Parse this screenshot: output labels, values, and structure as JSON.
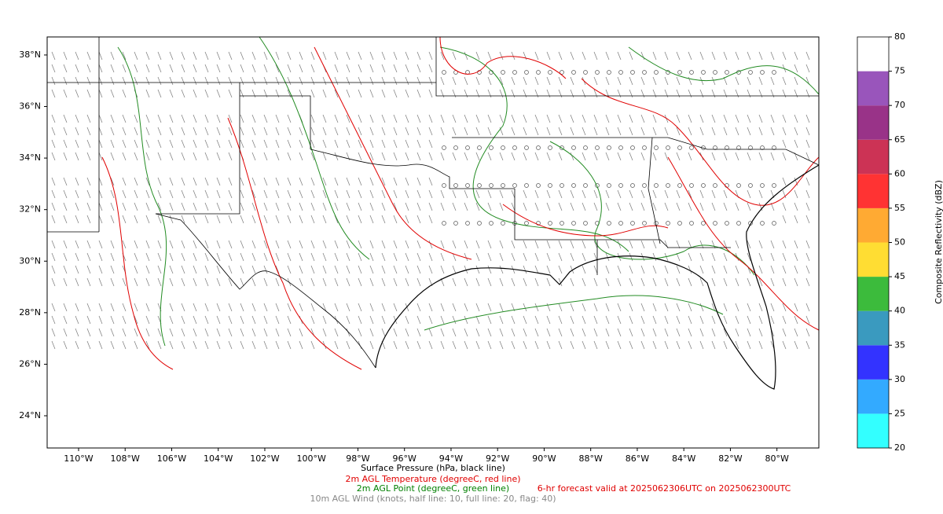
{
  "map": {
    "xlim": [
      -111.35,
      -78.2
    ],
    "ylim": [
      22.75,
      38.7
    ],
    "xticks": [
      {
        "value": -110,
        "label": "110°W"
      },
      {
        "value": -108,
        "label": "108°W"
      },
      {
        "value": -106,
        "label": "106°W"
      },
      {
        "value": -104,
        "label": "104°W"
      },
      {
        "value": -102,
        "label": "102°W"
      },
      {
        "value": -100,
        "label": "100°W"
      },
      {
        "value": -98,
        "label": "98°W"
      },
      {
        "value": -96,
        "label": "96°W"
      },
      {
        "value": -94,
        "label": "94°W"
      },
      {
        "value": -92,
        "label": "92°W"
      },
      {
        "value": -90,
        "label": "90°W"
      },
      {
        "value": -88,
        "label": "88°W"
      },
      {
        "value": -86,
        "label": "86°W"
      },
      {
        "value": -84,
        "label": "84°W"
      },
      {
        "value": -82,
        "label": "82°W"
      },
      {
        "value": -80,
        "label": "80°W"
      }
    ],
    "yticks": [
      {
        "value": 24,
        "label": "24°N"
      },
      {
        "value": 26,
        "label": "26°N"
      },
      {
        "value": 28,
        "label": "28°N"
      },
      {
        "value": 30,
        "label": "30°N"
      },
      {
        "value": 32,
        "label": "32°N"
      },
      {
        "value": 34,
        "label": "34°N"
      },
      {
        "value": 36,
        "label": "36°N"
      },
      {
        "value": 38,
        "label": "38°N"
      }
    ]
  },
  "colorbar": {
    "label": "Composite Reflectivity (dBZ)",
    "ticks": [
      20,
      25,
      30,
      35,
      40,
      45,
      50,
      55,
      60,
      65,
      70,
      75,
      80
    ],
    "colors": [
      "#33ffff",
      "#33aaff",
      "#3333ff",
      "#3a9abf",
      "#3cbb3c",
      "#ffdd33",
      "#ffaa33",
      "#ff3333",
      "#cc3355",
      "#993388",
      "#9955bb",
      "#ffffff"
    ]
  },
  "captions": {
    "pressure": "Surface Pressure (hPa, black line)",
    "temperature": "2m AGL Temperature (degreeC, red line)",
    "dewpoint": "2m AGL Point (degreeC, green line)",
    "wind": "10m AGL Wind (knots, half line: 10, full line: 20, flag: 40)",
    "forecast": "6-hr forecast valid at 2025062306UTC on 2025062300UTC"
  }
}
